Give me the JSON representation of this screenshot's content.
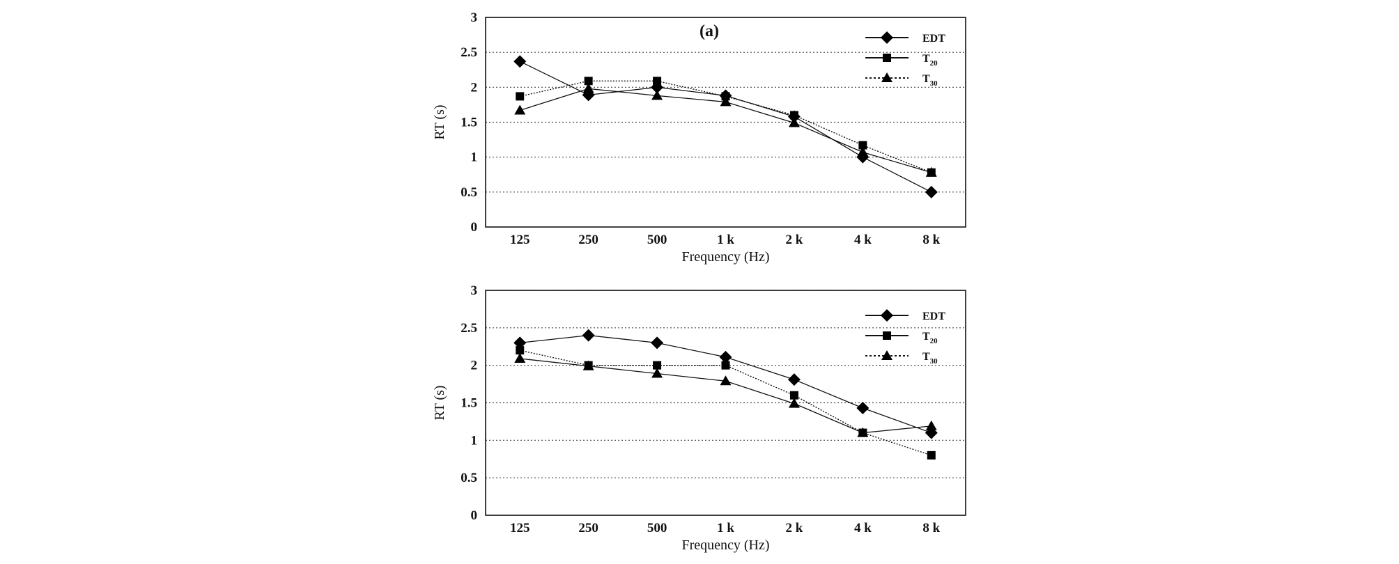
{
  "chart_data": [
    {
      "type": "line",
      "title": "(a)",
      "xlabel": "Frequency (Hz)",
      "ylabel": "RT (s)",
      "categories": [
        "125",
        "250",
        "500",
        "1 k",
        "2 k",
        "4 k",
        "8 k"
      ],
      "yticks": [
        "0",
        "0.5",
        "1",
        "1.5",
        "2",
        "2.5",
        "3"
      ],
      "ylim": [
        0,
        3
      ],
      "grid": "horizontal dotted",
      "legend_position": "top-right",
      "series": [
        {
          "name": "EDT",
          "base": "EDT",
          "sub": "",
          "marker": "diamond",
          "dash": "solid",
          "values": [
            2.37,
            1.89,
            2.0,
            1.88,
            1.58,
            1.0,
            0.5
          ]
        },
        {
          "name": "T20",
          "base": "T",
          "sub": "20",
          "marker": "square",
          "dash": "dotted",
          "values": [
            1.87,
            2.09,
            2.09,
            1.87,
            1.6,
            1.17,
            0.78
          ]
        },
        {
          "name": "T30",
          "base": "T",
          "sub": "30",
          "marker": "triangle",
          "dash": "solid",
          "values": [
            1.67,
            1.98,
            1.88,
            1.79,
            1.49,
            1.07,
            0.78
          ]
        }
      ]
    },
    {
      "type": "line",
      "title": "",
      "xlabel": "Frequency (Hz)",
      "ylabel": "RT (s)",
      "categories": [
        "125",
        "250",
        "500",
        "1 k",
        "2 k",
        "4 k",
        "8 k"
      ],
      "yticks": [
        "0",
        "0.5",
        "1",
        "1.5",
        "2",
        "2.5",
        "3"
      ],
      "ylim": [
        0,
        3
      ],
      "grid": "horizontal dotted",
      "legend_position": "top-right",
      "series": [
        {
          "name": "EDT",
          "base": "EDT",
          "sub": "",
          "marker": "diamond",
          "dash": "solid",
          "values": [
            2.3,
            2.4,
            2.3,
            2.11,
            1.81,
            1.43,
            1.1
          ]
        },
        {
          "name": "T20",
          "base": "T",
          "sub": "20",
          "marker": "square",
          "dash": "dotted",
          "values": [
            2.2,
            2.0,
            2.0,
            2.0,
            1.6,
            1.1,
            0.8
          ]
        },
        {
          "name": "T30",
          "base": "T",
          "sub": "30",
          "marker": "triangle",
          "dash": "solid",
          "values": [
            2.09,
            1.99,
            1.89,
            1.79,
            1.49,
            1.1,
            1.19
          ]
        }
      ]
    }
  ]
}
